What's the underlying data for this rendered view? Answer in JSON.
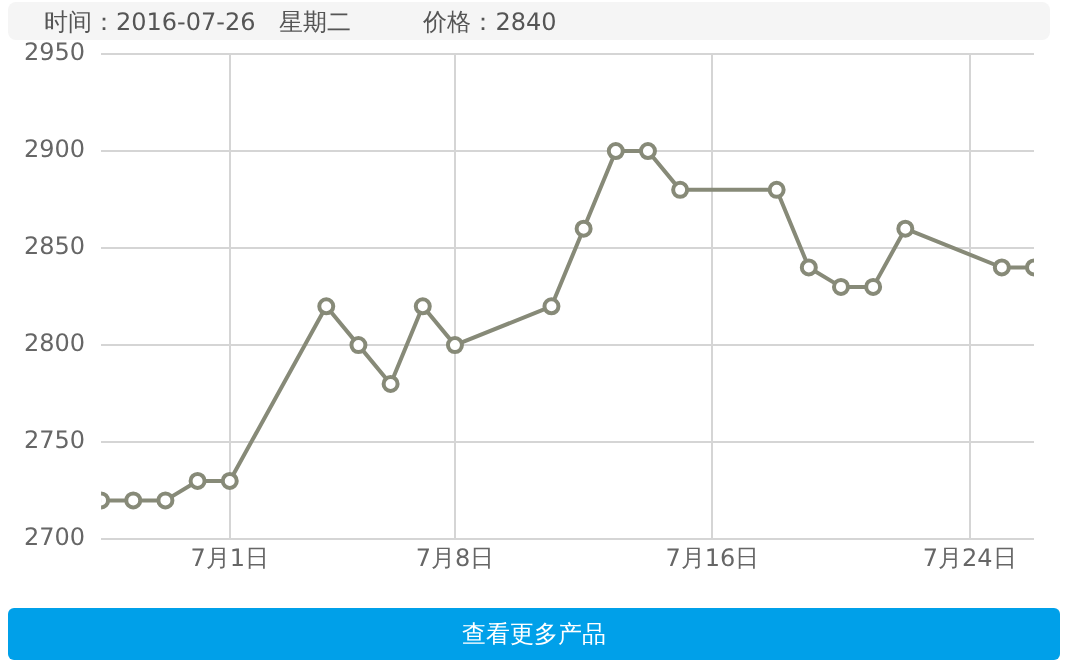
{
  "chart_data": {
    "type": "line",
    "title": "时间：2016-07-26　星期二　　　价格：2840",
    "x": [
      "2016-06-27",
      "2016-06-28",
      "2016-06-29",
      "2016-06-30",
      "2016-07-01",
      "2016-07-04",
      "2016-07-05",
      "2016-07-06",
      "2016-07-07",
      "2016-07-08",
      "2016-07-11",
      "2016-07-12",
      "2016-07-13",
      "2016-07-14",
      "2016-07-15",
      "2016-07-18",
      "2016-07-19",
      "2016-07-20",
      "2016-07-21",
      "2016-07-22",
      "2016-07-25",
      "2016-07-26"
    ],
    "values": [
      2720,
      2720,
      2720,
      2730,
      2730,
      2820,
      2800,
      2780,
      2820,
      2800,
      2820,
      2860,
      2900,
      2900,
      2880,
      2880,
      2840,
      2830,
      2830,
      2860,
      2840,
      2840
    ],
    "color": "#878a78",
    "marker": "circle",
    "line_style": "solid",
    "xlim": [
      "2016-06-27",
      "2016-07-26"
    ],
    "xticks": [
      {
        "value": "2016-07-01",
        "label": "7月1日"
      },
      {
        "value": "2016-07-08",
        "label": "7月8日"
      },
      {
        "value": "2016-07-16",
        "label": "7月16日"
      },
      {
        "value": "2016-07-24",
        "label": "7月24日"
      }
    ],
    "ylim": [
      2700,
      2950
    ],
    "yticks": [
      2700,
      2750,
      2800,
      2850,
      2900,
      2950
    ],
    "grid": true,
    "legend": false,
    "annotations": [
      "查看更多产品"
    ]
  }
}
